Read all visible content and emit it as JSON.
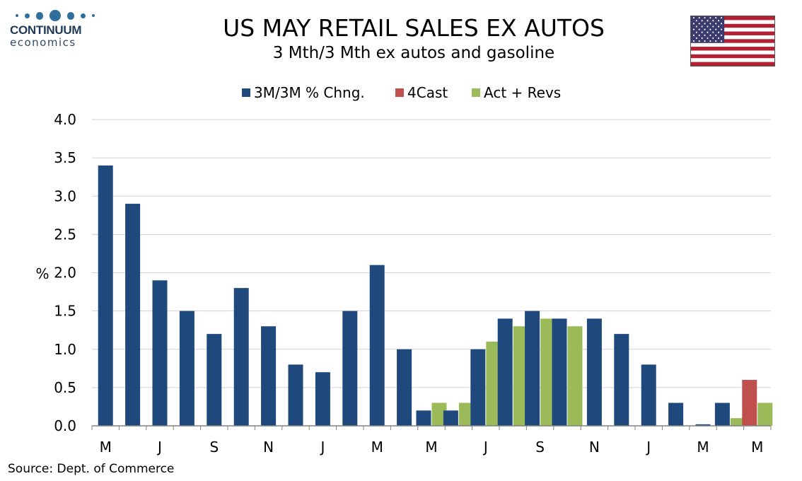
{
  "logo": {
    "name": "CONTINUUM",
    "sub": "economics"
  },
  "title": "US MAY RETAIL SALES EX AUTOS",
  "subtitle": "3 Mth/3 Mth  ex autos and gasoline",
  "flag": "us-flag",
  "source": "Source: Dept. of Commerce",
  "chart_data": {
    "type": "bar",
    "ylabel": "%",
    "ylim": [
      0,
      4
    ],
    "yticks": [
      "0.0",
      "0.5",
      "1.0",
      "1.5",
      "2.0",
      "2.5",
      "3.0",
      "3.5",
      "4.0"
    ],
    "grid": true,
    "legend": "top-center",
    "xticks": [
      {
        "index": 0,
        "label": "M"
      },
      {
        "index": 2,
        "label": "J"
      },
      {
        "index": 4,
        "label": "S"
      },
      {
        "index": 6,
        "label": "N"
      },
      {
        "index": 8,
        "label": "J"
      },
      {
        "index": 10,
        "label": "M"
      },
      {
        "index": 12,
        "label": "M"
      },
      {
        "index": 14,
        "label": "J"
      },
      {
        "index": 16,
        "label": "S"
      },
      {
        "index": 18,
        "label": "N"
      },
      {
        "index": 20,
        "label": "J"
      },
      {
        "index": 22,
        "label": "M"
      },
      {
        "index": 24,
        "label": "M"
      }
    ],
    "series": [
      {
        "name": "3M/3M % Chng.",
        "color": "#1f497d",
        "values": [
          3.4,
          2.9,
          1.9,
          1.5,
          1.2,
          1.8,
          1.3,
          0.8,
          0.7,
          1.5,
          2.1,
          1.0,
          0.2,
          0.2,
          1.0,
          1.4,
          1.5,
          1.4,
          1.4,
          1.2,
          0.8,
          0.3,
          0.02,
          0.3,
          null
        ]
      },
      {
        "name": "4Cast",
        "color": "#c0504d",
        "values": [
          null,
          null,
          null,
          null,
          null,
          null,
          null,
          null,
          null,
          null,
          null,
          null,
          null,
          null,
          null,
          null,
          null,
          null,
          null,
          null,
          null,
          null,
          null,
          null,
          0.6
        ]
      },
      {
        "name": "Act + Revs",
        "color": "#9bbb59",
        "values": [
          null,
          null,
          null,
          null,
          null,
          null,
          null,
          null,
          null,
          null,
          null,
          null,
          0.3,
          0.3,
          1.1,
          1.3,
          1.4,
          1.3,
          null,
          null,
          null,
          null,
          null,
          0.1,
          0.3
        ]
      }
    ]
  }
}
